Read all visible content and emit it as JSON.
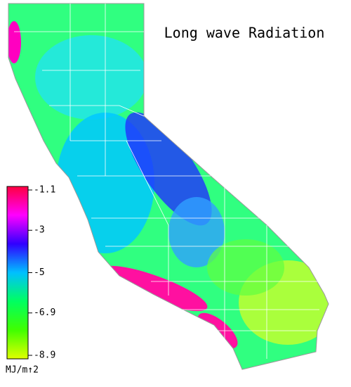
{
  "title": "Long wave Radiation",
  "colorbar": {
    "lim": [
      -8.9,
      -1.1
    ],
    "ticks": [
      -1.1,
      -3.0,
      -5.0,
      -6.9,
      -8.9
    ],
    "unit": "MJ/m↑2",
    "colors": [
      "#ff0040",
      "#ff00ff",
      "#3000ff",
      "#00c0ff",
      "#00ff60",
      "#40ff00",
      "#e0ff00"
    ]
  }
}
